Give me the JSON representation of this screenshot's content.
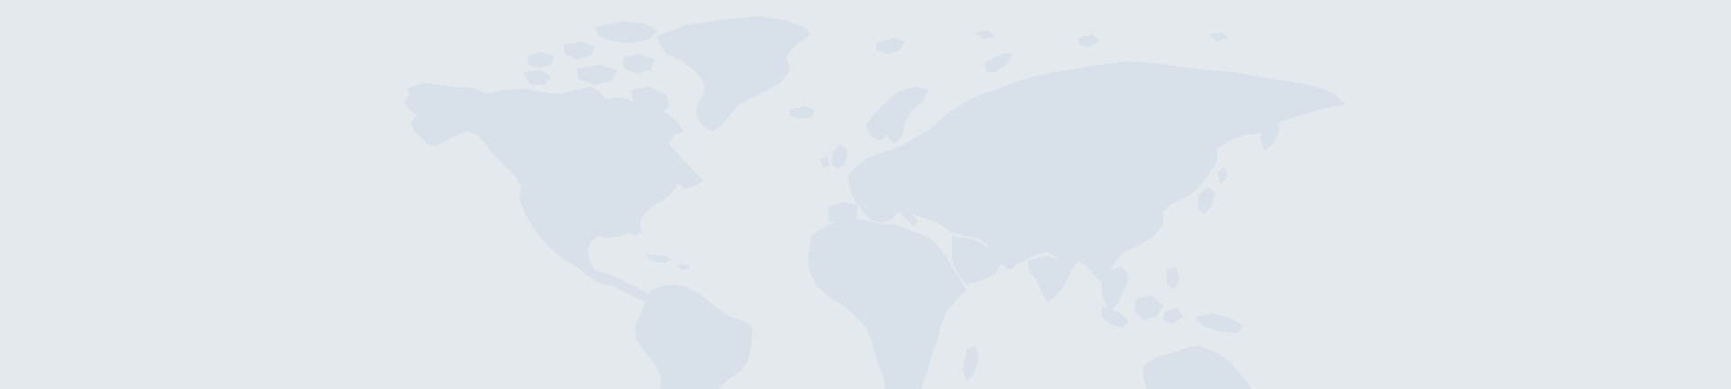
{
  "banner": {
    "background_color": "#e4e9ee",
    "land_color": "#d8e1ea",
    "map_style": "world map silhouette, decorative background"
  }
}
